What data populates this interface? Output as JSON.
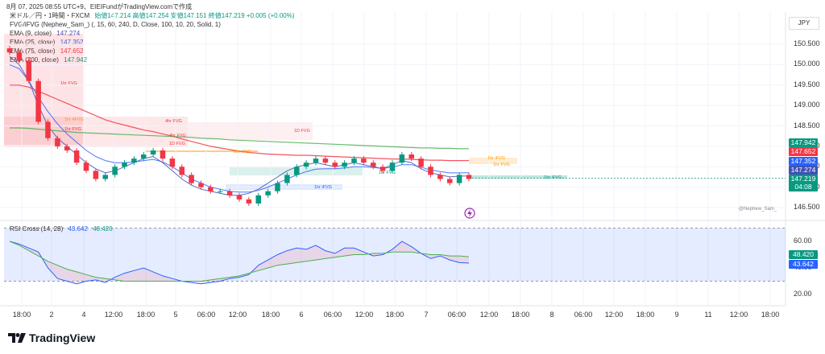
{
  "header": {
    "text": "8月 07, 2025 08:55 UTC+9、EIEIFundがTradingView.comで作成"
  },
  "legend": {
    "instrument": "米ドル／円・1時間・FXCM",
    "ohlc": "始値147.214 高値147.254 安値147.151 終値147.219 +0.005 (+0.00%)",
    "fvg": "FVG/iFVG (Nephew_Sam_) (, 15, 60, 240, D, Close, 100, 10, 20, Solid, 1)",
    "ema9": {
      "label": "EMA (9, close)",
      "value": "147.274"
    },
    "ema25": {
      "label": "EMA (25, close)",
      "value": "147.352"
    },
    "ema75": {
      "label": "EMA (75, close)",
      "value": "147.652"
    },
    "ema200": {
      "label": "EMA (200, close)",
      "value": "147.942"
    },
    "rsi": {
      "label": "RSI Cross (14, 28)",
      "v1": "43.642",
      "v2": "48.420"
    }
  },
  "currency": "JPY",
  "watermark": "@Nephew_Sam_",
  "brand": "TradingView",
  "price_tags": [
    {
      "text": "147.942",
      "color": "#089981"
    },
    {
      "text": "147.652",
      "color": "#f23645"
    },
    {
      "text": "147.352",
      "color": "#2962ff"
    },
    {
      "text": "147.274",
      "color": "#3f51b5"
    },
    {
      "text": "147.219",
      "color": "#089981"
    },
    {
      "text": "04:08",
      "color": "#089981"
    }
  ],
  "rsi_tags": [
    {
      "text": "48.420",
      "color": "#089981"
    },
    {
      "text": "43.642",
      "color": "#2962ff"
    }
  ],
  "fvg_labels": [
    "1hr FVG",
    "4hr FVG",
    "1D FVG",
    "1hr FVG",
    "4hr FVG",
    "1D FVG",
    "1hr iFVG",
    "1hr FVG",
    "1hr iFVG",
    "1hr iFVG",
    "1hr FVG",
    "1hr iFVG",
    "1hr 4FVG"
  ],
  "chart_data": [
    {
      "type": "candlestick",
      "title": "米ドル／円・1時間・FXCM",
      "ylim": [
        146.3,
        150.9
      ],
      "y_ticks": [
        150.5,
        150.0,
        149.5,
        149.0,
        148.5,
        148.0,
        147.5,
        147.0,
        146.5
      ],
      "x_tick_labels": [
        "18:00",
        "2",
        "4",
        "12:00",
        "18:00",
        "5",
        "06:00",
        "12:00",
        "18:00",
        "6",
        "06:00",
        "12:00",
        "18:00",
        "7",
        "06:00",
        "12:00",
        "18:00",
        "8",
        "06:00",
        "12:00",
        "18:00",
        "9",
        "11",
        "12:00",
        "18:00"
      ],
      "close_values": [
        150.3,
        150.1,
        149.6,
        148.6,
        148.2,
        148.0,
        147.9,
        147.6,
        147.4,
        147.2,
        147.3,
        147.5,
        147.6,
        147.7,
        147.8,
        147.9,
        147.7,
        147.5,
        147.3,
        147.1,
        147.0,
        146.9,
        146.9,
        146.8,
        146.7,
        146.6,
        146.8,
        146.9,
        147.1,
        147.3,
        147.5,
        147.6,
        147.7,
        147.6,
        147.5,
        147.6,
        147.7,
        147.6,
        147.5,
        147.4,
        147.6,
        147.8,
        147.7,
        147.5,
        147.3,
        147.2,
        147.1,
        147.3,
        147.2
      ],
      "series": [
        {
          "name": "EMA (9, close)",
          "values": [
            150.2,
            150.0,
            149.6,
            149.0,
            148.5,
            148.2,
            148.0,
            147.8,
            147.6,
            147.45,
            147.35,
            147.4,
            147.5,
            147.6,
            147.7,
            147.75,
            147.6,
            147.4,
            147.2,
            147.05,
            146.95,
            146.9,
            146.85,
            146.8,
            146.8,
            146.85,
            146.95,
            147.1,
            147.25,
            147.4,
            147.5,
            147.55,
            147.6,
            147.55,
            147.5,
            147.55,
            147.6,
            147.55,
            147.5,
            147.45,
            147.55,
            147.65,
            147.6,
            147.45,
            147.35,
            147.3,
            147.25,
            147.27,
            147.274
          ]
        },
        {
          "name": "EMA (25, close)",
          "values": [
            150.0,
            149.9,
            149.6,
            149.2,
            148.85,
            148.55,
            148.3,
            148.1,
            147.9,
            147.75,
            147.65,
            147.6,
            147.6,
            147.62,
            147.65,
            147.68,
            147.62,
            147.5,
            147.35,
            147.2,
            147.1,
            147.0,
            146.95,
            146.9,
            146.88,
            146.88,
            146.92,
            147.0,
            147.1,
            147.2,
            147.3,
            147.38,
            147.44,
            147.45,
            147.45,
            147.47,
            147.5,
            147.5,
            147.48,
            147.46,
            147.49,
            147.55,
            147.55,
            147.49,
            147.42,
            147.38,
            147.35,
            147.35,
            147.352
          ]
        },
        {
          "name": "EMA (75, close)",
          "values": [
            149.5,
            149.5,
            149.45,
            149.35,
            149.25,
            149.15,
            149.05,
            148.95,
            148.85,
            148.75,
            148.65,
            148.58,
            148.52,
            148.46,
            148.4,
            148.36,
            148.3,
            148.25,
            148.18,
            148.12,
            148.06,
            148.0,
            147.96,
            147.92,
            147.88,
            147.85,
            147.83,
            147.81,
            147.8,
            147.79,
            147.78,
            147.78,
            147.77,
            147.76,
            147.75,
            147.74,
            147.73,
            147.72,
            147.71,
            147.7,
            147.69,
            147.69,
            147.68,
            147.67,
            147.66,
            147.66,
            147.65,
            147.65,
            147.652
          ]
        },
        {
          "name": "EMA (200, close)",
          "values": [
            148.45,
            148.45,
            148.44,
            148.42,
            148.4,
            148.38,
            148.36,
            148.34,
            148.33,
            148.32,
            148.31,
            148.3,
            148.29,
            148.28,
            148.27,
            148.26,
            148.25,
            148.24,
            148.23,
            148.22,
            148.2,
            148.19,
            148.18,
            148.16,
            148.15,
            148.14,
            148.13,
            148.12,
            148.11,
            148.1,
            148.09,
            148.08,
            148.07,
            148.06,
            148.05,
            148.04,
            148.03,
            148.02,
            148.01,
            148.0,
            147.99,
            147.98,
            147.97,
            147.96,
            147.96,
            147.95,
            147.95,
            147.94,
            147.942
          ]
        }
      ],
      "grid": true
    },
    {
      "type": "line",
      "title": "RSI Cross (14, 28)",
      "ylim": [
        15,
        70
      ],
      "y_ticks": [
        60.0,
        40.0,
        20.0
      ],
      "series": [
        {
          "name": "RSI 14",
          "values": [
            60,
            58,
            55,
            52,
            40,
            32,
            30,
            28,
            30,
            31,
            29,
            33,
            36,
            38,
            40,
            37,
            34,
            32,
            30,
            29,
            28,
            29,
            30,
            32,
            33,
            35,
            42,
            46,
            50,
            53,
            55,
            54,
            57,
            53,
            51,
            55,
            55,
            52,
            49,
            50,
            54,
            60,
            56,
            51,
            47,
            49,
            46,
            44,
            43.642
          ]
        },
        {
          "name": "RSI 28",
          "values": [
            60,
            57,
            53,
            49,
            45,
            42,
            39,
            37,
            35,
            33,
            32,
            31,
            30,
            30,
            30,
            30,
            30,
            30,
            30,
            30,
            30,
            31,
            32,
            33,
            34,
            36,
            38,
            40,
            42,
            43,
            44,
            45,
            46,
            47,
            48,
            49,
            50,
            50,
            51,
            51,
            52,
            52,
            52,
            51,
            50,
            50,
            49,
            49,
            48.42
          ]
        }
      ],
      "grid": true
    }
  ]
}
